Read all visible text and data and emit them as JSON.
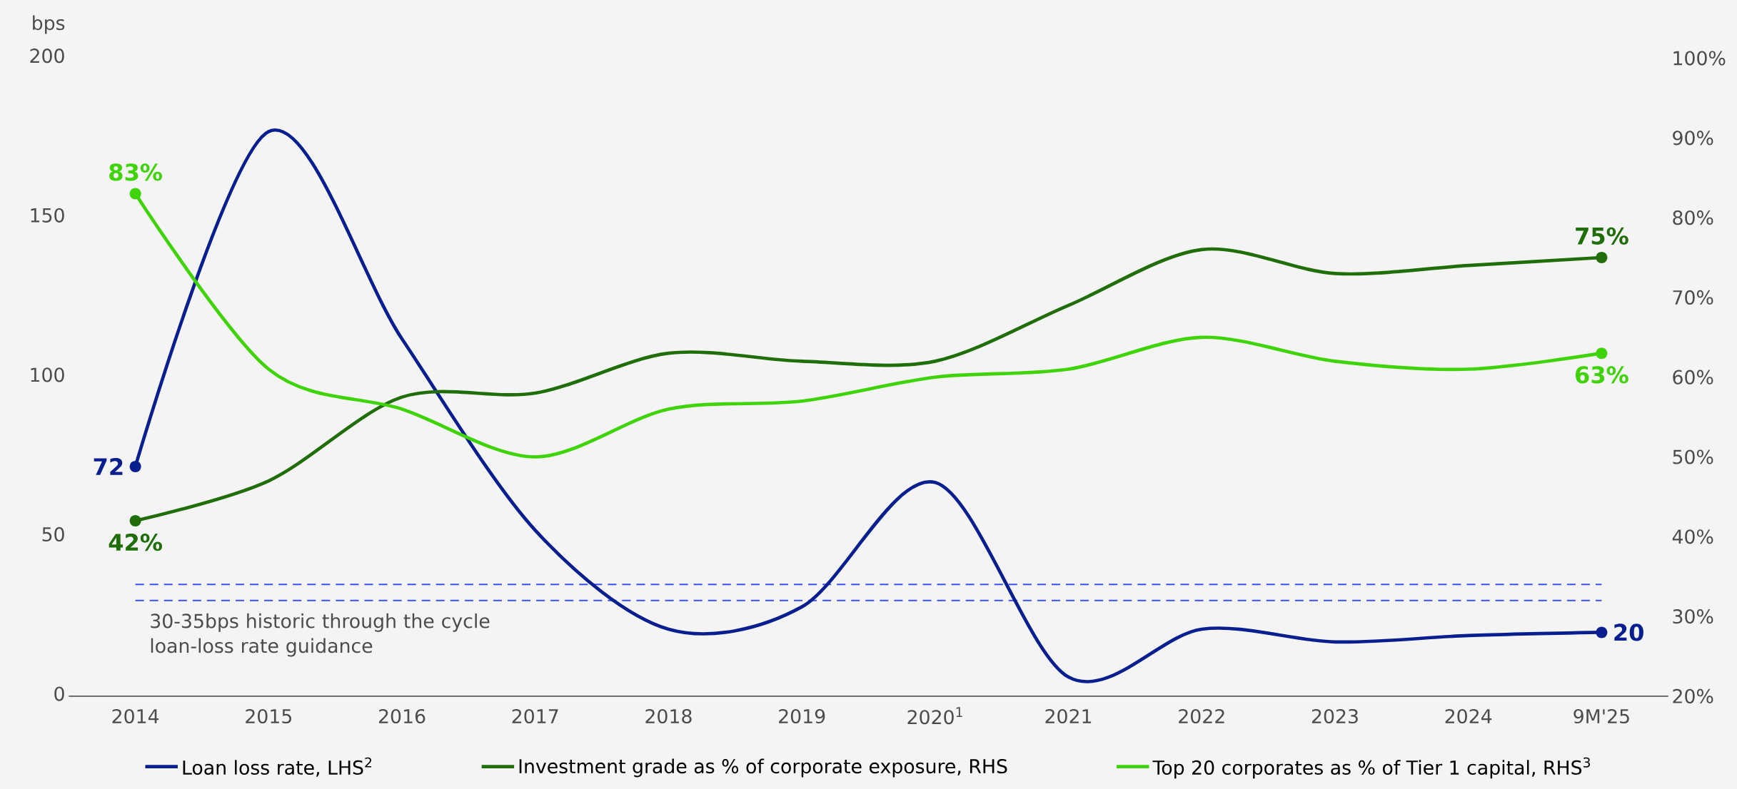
{
  "chart_data": {
    "type": "line",
    "ylabel": "bps",
    "categories": [
      "2014",
      "2015",
      "2016",
      "2017",
      "2018",
      "2019",
      "2020$^{1}$",
      "2021",
      "2022",
      "2023",
      "2024",
      "9M'25"
    ],
    "series": [
      {
        "name": "Loan loss rate, LHS$^{2}$",
        "color": "#0a1f8f",
        "values": [
          72,
          177,
          112,
          52,
          21,
          28,
          67,
          6,
          21,
          17,
          19,
          20
        ],
        "value_labels": [
          "72",
          null,
          null,
          null,
          null,
          null,
          null,
          null,
          null,
          null,
          null,
          "20"
        ]
      },
      {
        "name": "Investment grade as % of corporate exposure, RHS",
        "color": "#1f6e0a",
        "axis": "y2",
        "values": [
          42,
          47,
          57.5,
          58,
          63,
          62,
          62,
          69,
          76,
          73,
          74,
          75
        ],
        "value_labels": [
          "42%",
          null,
          null,
          null,
          null,
          null,
          null,
          null,
          null,
          null,
          null,
          "75%"
        ]
      },
      {
        "name": "Top 20 corporates as % of Tier 1 capital, RHS$^{3}$",
        "color": "#3fd40a",
        "axis": "y2",
        "values": [
          83,
          61,
          56,
          50,
          56,
          57,
          60,
          61,
          65,
          62,
          61,
          63
        ],
        "value_labels": [
          "83%",
          null,
          null,
          null,
          null,
          null,
          null,
          null,
          null,
          null,
          null,
          "63%"
        ]
      }
    ],
    "ylim": [
      0,
      200
    ],
    "yticks": [
      0,
      50,
      100,
      150,
      200
    ],
    "y2lim": [
      20,
      100
    ],
    "y2ticks": [
      {
        "value": 20,
        "label": "20%"
      },
      {
        "value": 30,
        "label": "30%"
      },
      {
        "value": 40,
        "label": "40%"
      },
      {
        "value": 50,
        "label": "50%"
      },
      {
        "value": 60,
        "label": "60%"
      },
      {
        "value": 70,
        "label": "70%"
      },
      {
        "value": 80,
        "label": "80%"
      },
      {
        "value": 90,
        "label": "90%"
      },
      {
        "value": 100,
        "label": "100%"
      }
    ],
    "ref_lines": [
      {
        "axis": "y",
        "value": 35,
        "color": "#3a4ff0",
        "line_style": "dashed"
      },
      {
        "axis": "y",
        "value": 30,
        "color": "#3a4ff0",
        "line_style": "dashed"
      }
    ],
    "annotations": [
      "30-35bps historic through the cycle loan-loss rate guidance"
    ],
    "legend": "bottom",
    "grid": false,
    "marker": "none",
    "line_style": "solid"
  }
}
